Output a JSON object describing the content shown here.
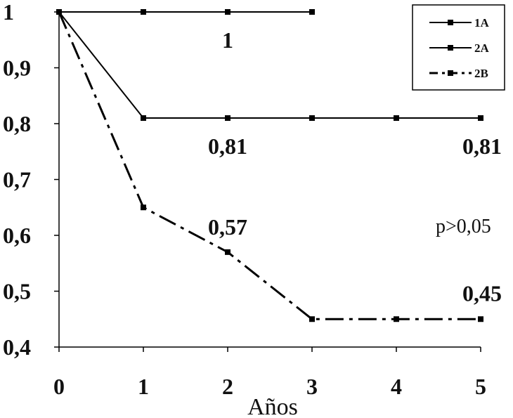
{
  "chart_data": {
    "type": "line",
    "title": "",
    "xlabel": "Años",
    "ylabel": "",
    "xlim": [
      0,
      5
    ],
    "ylim": [
      0.4,
      1
    ],
    "x_ticks": [
      "0",
      "1",
      "2",
      "3",
      "4",
      "5"
    ],
    "y_ticks": [
      "0,4",
      "0,5",
      "0,6",
      "0,7",
      "0,8",
      "0,9",
      "1"
    ],
    "grid": false,
    "legend_position": "top-right",
    "series": [
      {
        "name": "1A",
        "x": [
          0,
          1,
          2,
          3
        ],
        "values": [
          1,
          1,
          1,
          1
        ],
        "style": "solid"
      },
      {
        "name": "2A",
        "x": [
          0,
          1,
          2,
          3,
          4,
          5
        ],
        "values": [
          1,
          0.81,
          0.81,
          0.81,
          0.81,
          0.81
        ],
        "style": "solid"
      },
      {
        "name": "2B",
        "x": [
          0,
          1,
          2,
          3,
          4,
          5
        ],
        "values": [
          1,
          0.65,
          0.57,
          0.45,
          0.45,
          0.45
        ],
        "style": "dash-dot"
      }
    ],
    "data_labels": [
      {
        "text": "1",
        "x": 2,
        "y": 1
      },
      {
        "text": "0,81",
        "x": 2,
        "y": 0.81
      },
      {
        "text": "0,81",
        "x": 5,
        "y": 0.81
      },
      {
        "text": "0,57",
        "x": 2,
        "y": 0.57
      },
      {
        "text": "0,45",
        "x": 5,
        "y": 0.45
      }
    ],
    "annotations": [
      "p>0,05"
    ]
  }
}
